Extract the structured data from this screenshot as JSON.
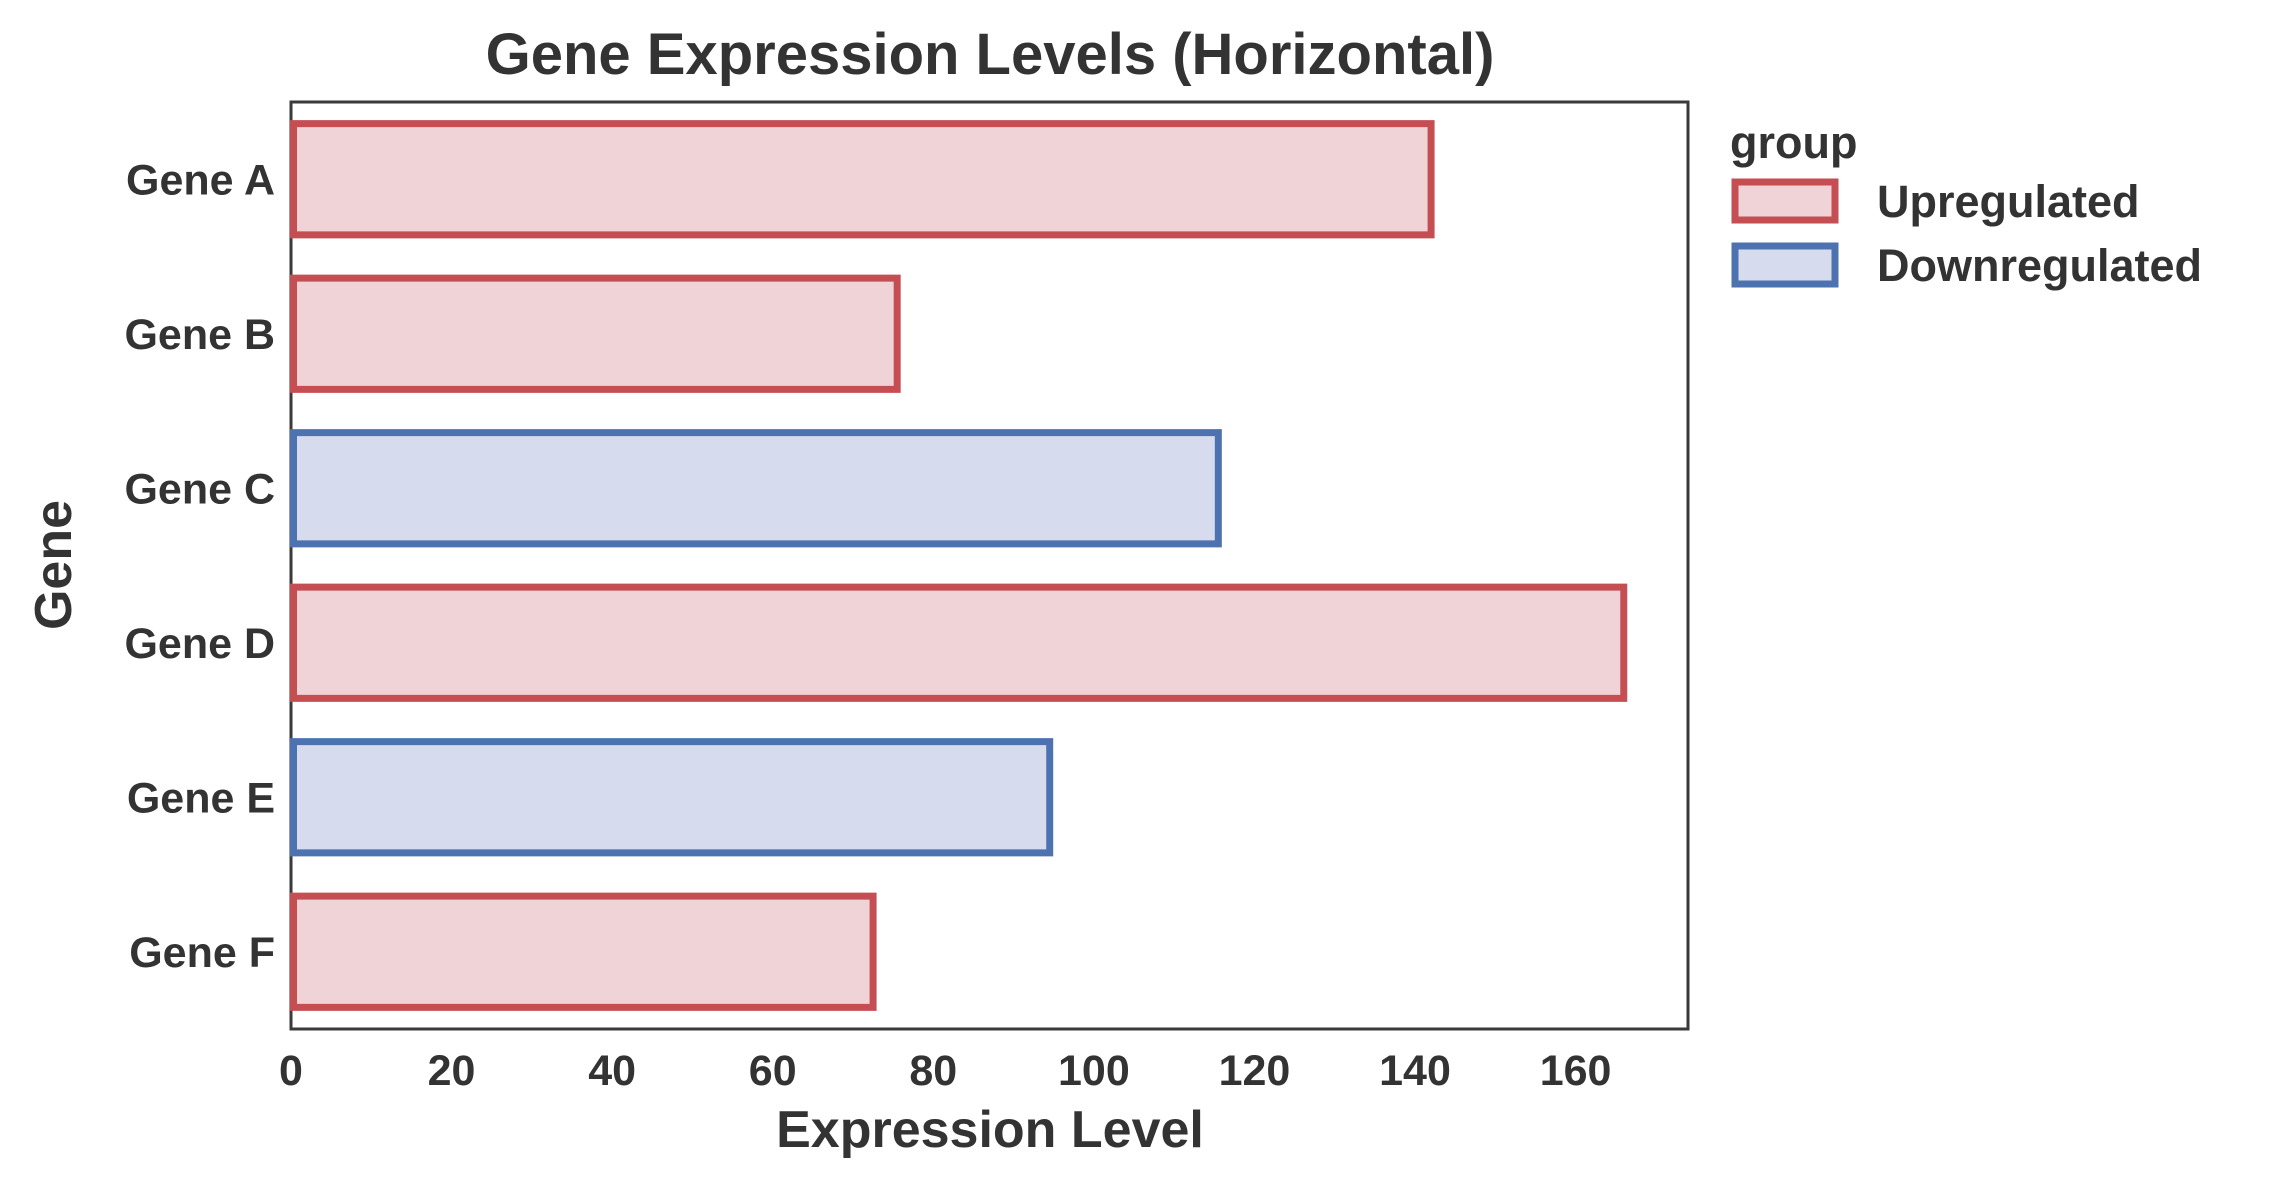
{
  "chart_data": {
    "type": "bar",
    "orientation": "horizontal",
    "title": "Gene Expression Levels (Horizontal)",
    "xlabel": "Expression Level",
    "ylabel": "Gene",
    "xlim": [
      0,
      174
    ],
    "xticks": [
      0,
      20,
      40,
      60,
      80,
      100,
      120,
      140,
      160
    ],
    "grid": false,
    "categories": [
      "Gene A",
      "Gene B",
      "Gene C",
      "Gene D",
      "Gene E",
      "Gene F"
    ],
    "values": [
      142,
      75.5,
      115.5,
      166,
      94.5,
      72.5
    ],
    "groups": [
      "Upregulated",
      "Upregulated",
      "Downregulated",
      "Upregulated",
      "Downregulated",
      "Upregulated"
    ],
    "legend": {
      "title": "group",
      "position": "outside right, top",
      "entries": [
        {
          "label": "Upregulated",
          "stroke": "#c44e52",
          "fill": "#f0d3d7"
        },
        {
          "label": "Downregulated",
          "stroke": "#4c72b0",
          "fill": "#d6dcee"
        }
      ]
    }
  }
}
